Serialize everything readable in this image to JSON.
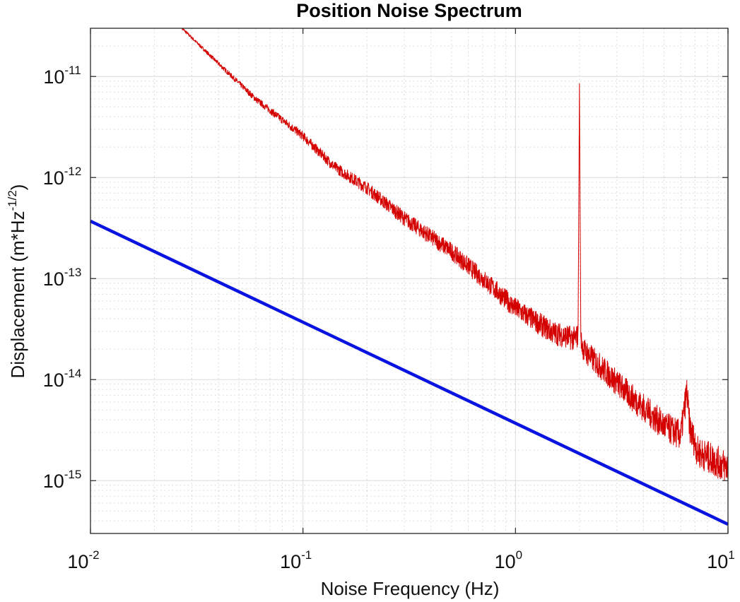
{
  "chart_data": {
    "type": "line",
    "title": "Position Noise Spectrum",
    "xlabel": "Noise Frequency (Hz)",
    "ylabel": {
      "base": "Displacement (m*Hz",
      "superscript": "-1/2",
      "close": ")"
    },
    "x_scale": "log",
    "y_scale": "log",
    "xlim": [
      0.01,
      10
    ],
    "ylim": [
      3e-16,
      3e-11
    ],
    "grid": true,
    "x_ticks": [
      {
        "value": 0.01,
        "base": "10",
        "exp": "-2"
      },
      {
        "value": 0.1,
        "base": "10",
        "exp": "-1"
      },
      {
        "value": 1,
        "base": "10",
        "exp": "0"
      },
      {
        "value": 10,
        "base": "10",
        "exp": "1"
      }
    ],
    "y_ticks": [
      {
        "value": 1e-11,
        "base": "10",
        "exp": "-11"
      },
      {
        "value": 1e-12,
        "base": "10",
        "exp": "-12"
      },
      {
        "value": 1e-13,
        "base": "10",
        "exp": "-13"
      },
      {
        "value": 1e-14,
        "base": "10",
        "exp": "-14"
      },
      {
        "value": 1e-15,
        "base": "10",
        "exp": "-15"
      }
    ],
    "series": [
      {
        "color": "#d40000",
        "style": "noisy spectrum",
        "x": [
          0.027,
          0.04,
          0.06,
          0.1,
          0.14,
          0.2,
          0.3,
          0.5,
          0.8,
          1.0,
          1.5,
          1.9,
          1.97,
          2.0,
          2.03,
          2.1,
          2.5,
          3.5,
          5.0,
          6.0,
          6.4,
          6.6,
          7.2,
          10.0
        ],
        "y": [
          3e-11,
          1.35e-11,
          6e-12,
          2.6e-12,
          1.3e-12,
          8e-13,
          4e-13,
          1.9e-13,
          8e-14,
          5.2e-14,
          3e-14,
          2.6e-14,
          2.8e-14,
          8.5e-12,
          2.6e-14,
          2e-14,
          1.4e-14,
          7e-15,
          3.6e-15,
          2.9e-15,
          8e-15,
          3.5e-15,
          2e-15,
          1.4e-15
        ]
      },
      {
        "color": "#0a14e0",
        "style": "thick line",
        "x": [
          0.01,
          10
        ],
        "y": [
          3.7e-13,
          3.7e-16
        ]
      }
    ]
  }
}
